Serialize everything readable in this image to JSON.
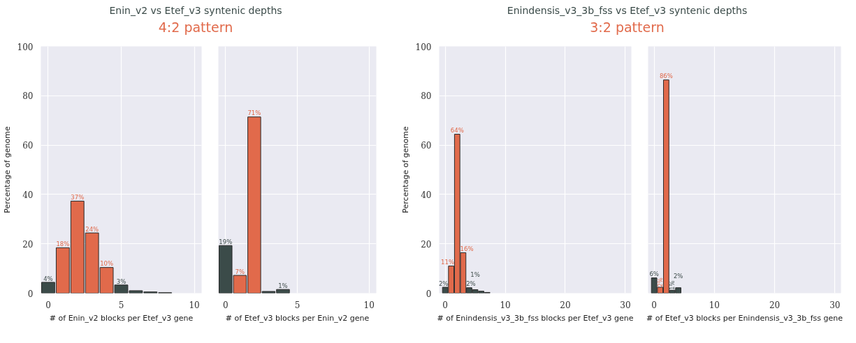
{
  "chart_data": [
    {
      "type": "bar",
      "title": "Enin_v2 vs Etef_v3 syntenic depths",
      "subtitle": "4:2 pattern",
      "xlabel": "# of Enin_v2 blocks per Etef_v3 gene",
      "ylabel": "Percentage of genome",
      "x": [
        0,
        1,
        2,
        3,
        4,
        5,
        6,
        7,
        8
      ],
      "values": [
        4.4,
        18.4,
        37.3,
        24.4,
        10.4,
        3.3,
        1.0,
        0.5,
        0.2
      ],
      "colors": [
        "#3b4b49",
        "#e16a4b",
        "#e16a4b",
        "#e16a4b",
        "#e16a4b",
        "#3b4b49",
        "#3b4b49",
        "#3b4b49",
        "#3b4b49"
      ],
      "value_labels": [
        "4%",
        "18%",
        "37%",
        "24%",
        "10%",
        "3%",
        null,
        null,
        null
      ],
      "xlim": [
        -0.5,
        10.5
      ],
      "xticks": [
        0,
        5,
        10
      ],
      "ylim": [
        0,
        100
      ],
      "yticks": [
        0,
        20,
        40,
        60,
        80,
        100
      ],
      "grid": true
    },
    {
      "type": "bar",
      "xlabel": "# of Etef_v3 blocks per Enin_v2 gene",
      "x": [
        0,
        1,
        2,
        3,
        4
      ],
      "values": [
        19.3,
        7.2,
        71.4,
        0.7,
        1.5
      ],
      "colors": [
        "#3b4b49",
        "#e16a4b",
        "#e16a4b",
        "#3b4b49",
        "#3b4b49"
      ],
      "value_labels": [
        "19%",
        "7%",
        "71%",
        null,
        "1%"
      ],
      "xlim": [
        -0.5,
        10.5
      ],
      "xticks": [
        0,
        5,
        10
      ],
      "ylim": [
        0,
        100
      ],
      "yticks": [
        0,
        20,
        40,
        60,
        80,
        100
      ],
      "grid": true,
      "tick_labels": "x"
    },
    {
      "type": "bar",
      "title": "Enindensis_v3_3b_fss vs Etef_v3 syntenic depths",
      "subtitle": "3:2 pattern",
      "xlabel": "# of Enindensis_v3_3b_fss blocks per Etef_v3 gene",
      "ylabel": "Percentage of genome",
      "x": [
        0,
        1,
        2,
        3,
        4,
        5,
        6,
        7
      ],
      "values": [
        2.4,
        11.0,
        64.4,
        16.4,
        2.2,
        1.4,
        0.8,
        0.3
      ],
      "colors": [
        "#3b4b49",
        "#e16a4b",
        "#e16a4b",
        "#e16a4b",
        "#3b4b49",
        "#3b4b49",
        "#3b4b49",
        "#3b4b49"
      ],
      "value_labels": [
        "2%",
        "11%",
        "64%",
        "16%",
        "2%",
        "1%",
        null,
        null
      ],
      "xlim": [
        -1,
        31
      ],
      "xticks": [
        0,
        10,
        20,
        30
      ],
      "ylim": [
        0,
        100
      ],
      "yticks": [
        0,
        20,
        40,
        60,
        80,
        100
      ],
      "grid": true
    },
    {
      "type": "bar",
      "xlabel": "# of Etef_v3 blocks per Enindensis_v3_3b_fss gene",
      "x": [
        0,
        1,
        2,
        3,
        4
      ],
      "values": [
        6.2,
        2.4,
        86.4,
        1.2,
        2.2
      ],
      "colors": [
        "#3b4b49",
        "#e16a4b",
        "#e16a4b",
        "#3b4b49",
        "#3b4b49"
      ],
      "value_labels": [
        "6%",
        "2%",
        "86%",
        "1%",
        "2%"
      ],
      "xlim": [
        -1,
        31
      ],
      "xticks": [
        0,
        10,
        20,
        30
      ],
      "ylim": [
        0,
        100
      ],
      "yticks": [
        0,
        20,
        40,
        60,
        80,
        100
      ],
      "grid": true,
      "tick_labels": "x"
    }
  ]
}
